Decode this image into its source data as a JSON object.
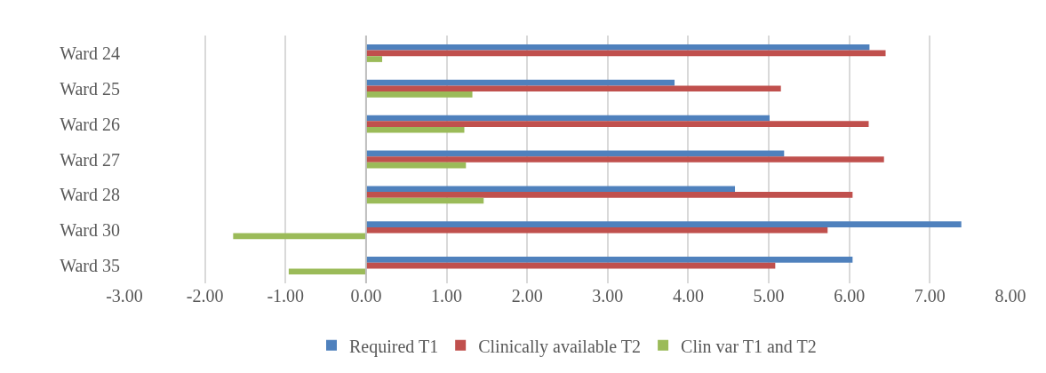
{
  "chart_data": {
    "type": "bar",
    "orientation": "horizontal",
    "categories": [
      "Ward 24",
      "Ward 25",
      "Ward 26",
      "Ward 27",
      "Ward 28",
      "Ward 30",
      "Ward 35"
    ],
    "series": [
      {
        "name": "Required T1",
        "color": "#4f81bd",
        "values": [
          6.25,
          3.83,
          5.01,
          5.19,
          4.58,
          7.39,
          6.04
        ]
      },
      {
        "name": "Clinically available T2",
        "color": "#c0504d",
        "values": [
          6.45,
          5.15,
          6.24,
          6.43,
          6.04,
          5.73,
          5.08
        ]
      },
      {
        "name": "Clin var T1 and T2",
        "color": "#9bbb59",
        "values": [
          0.2,
          1.32,
          1.22,
          1.24,
          1.46,
          -1.65,
          -0.96
        ]
      }
    ],
    "xlim": [
      -3,
      8
    ],
    "xticks": [
      {
        "value": -3,
        "label": "-3.00"
      },
      {
        "value": -2,
        "label": "-2.00"
      },
      {
        "value": -1,
        "label": "-1.00"
      },
      {
        "value": 0,
        "label": "0.00"
      },
      {
        "value": 1,
        "label": "1.00"
      },
      {
        "value": 2,
        "label": "2.00"
      },
      {
        "value": 3,
        "label": "3.00"
      },
      {
        "value": 4,
        "label": "4.00"
      },
      {
        "value": 5,
        "label": "5.00"
      },
      {
        "value": 6,
        "label": "6.00"
      },
      {
        "value": 7,
        "label": "7.00"
      },
      {
        "value": 8,
        "label": "8.00"
      }
    ],
    "grid": "x",
    "legend": "bottom"
  }
}
